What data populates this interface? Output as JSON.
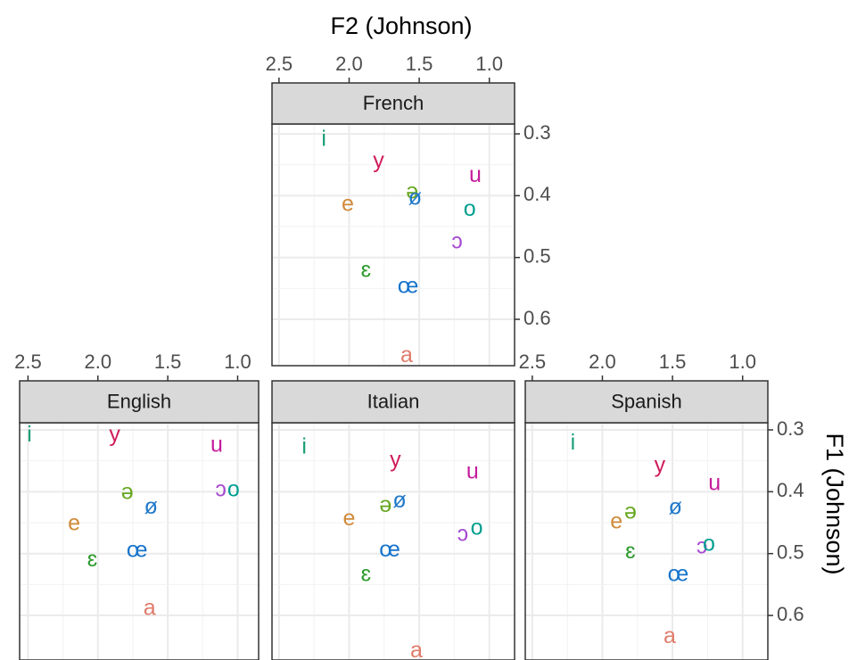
{
  "axis_labels": {
    "x": "F2 (Johnson)",
    "y": "F1 (Johnson)"
  },
  "chart_data": [
    {
      "type": "scatter",
      "facet": "French",
      "x_axis": "top",
      "y_axis": "right",
      "grid": true,
      "xlim": [
        2.55,
        0.82
      ],
      "ylim": [
        0.675,
        0.284
      ],
      "xticks": [
        2.5,
        {
          "value": 2,
          "label": "2.0"
        },
        1.5,
        {
          "value": 1,
          "label": "1.0"
        }
      ],
      "yticks": [
        0.3,
        0.4,
        0.5,
        0.6
      ],
      "labels": [
        "i",
        "y",
        "u",
        "ə",
        "ø",
        "e",
        "o",
        "ɔ",
        "ɛ",
        "œ",
        "a"
      ],
      "x": [
        2.18,
        1.79,
        1.1,
        1.55,
        1.53,
        2.01,
        1.14,
        1.23,
        1.88,
        1.58,
        1.59
      ],
      "values": [
        0.31,
        0.345,
        0.368,
        0.395,
        0.405,
        0.415,
        0.423,
        0.476,
        0.522,
        0.548,
        0.66
      ],
      "colors": [
        "#1a9e77",
        "#d01c5b",
        "#c51b9b",
        "#66a61e",
        "#1f78c8",
        "#d08a3a",
        "#009e8f",
        "#a64bd0",
        "#2a9a2a",
        "#1673cc",
        "#e07b6a"
      ]
    },
    {
      "type": "scatter",
      "facet": "English",
      "x_axis": "top",
      "y_axis": "none",
      "grid": true,
      "xlim": [
        2.56,
        0.85
      ],
      "ylim": [
        0.672,
        0.2885
      ],
      "xticks": [
        2.5,
        {
          "value": 2,
          "label": "2.0"
        },
        1.5,
        {
          "value": 1,
          "label": "1.0"
        }
      ],
      "yticks": [
        0.3,
        0.4,
        0.5,
        0.6
      ],
      "labels": [
        "i",
        "y",
        "u",
        "ə",
        "ɔ",
        "o",
        "ø",
        "e",
        "œ",
        "ɛ",
        "a"
      ],
      "x": [
        2.49,
        1.88,
        1.15,
        1.79,
        1.12,
        1.03,
        1.62,
        2.17,
        1.72,
        2.04,
        1.63
      ],
      "values": [
        0.309,
        0.309,
        0.326,
        0.402,
        0.398,
        0.398,
        0.426,
        0.453,
        0.496,
        0.511,
        0.59
      ],
      "colors": [
        "#1a9e77",
        "#d01c5b",
        "#c51b9b",
        "#66a61e",
        "#a64bd0",
        "#009e8f",
        "#1f78c8",
        "#d08a3a",
        "#1673cc",
        "#2a9a2a",
        "#e07b6a"
      ]
    },
    {
      "type": "scatter",
      "facet": "Italian",
      "x_axis": "none",
      "y_axis": "none",
      "grid": true,
      "xlim": [
        2.55,
        0.82
      ],
      "ylim": [
        0.672,
        0.2885
      ],
      "xticks": [
        2.5,
        {
          "value": 2,
          "label": "2.0"
        },
        1.5,
        {
          "value": 1,
          "label": "1.0"
        }
      ],
      "yticks": [
        0.3,
        0.4,
        0.5,
        0.6
      ],
      "labels": [
        "i",
        "y",
        "u",
        "ə",
        "ø",
        "e",
        "o",
        "ɔ",
        "œ",
        "ɛ",
        "a"
      ],
      "x": [
        2.32,
        1.67,
        1.12,
        1.74,
        1.64,
        2.0,
        1.09,
        1.19,
        1.71,
        1.88,
        1.52
      ],
      "values": [
        0.329,
        0.35,
        0.369,
        0.423,
        0.416,
        0.445,
        0.46,
        0.47,
        0.495,
        0.535,
        0.658
      ],
      "colors": [
        "#1a9e77",
        "#d01c5b",
        "#c51b9b",
        "#66a61e",
        "#1f78c8",
        "#d08a3a",
        "#009e8f",
        "#a64bd0",
        "#1673cc",
        "#2a9a2a",
        "#e07b6a"
      ]
    },
    {
      "type": "scatter",
      "facet": "Spanish",
      "x_axis": "top",
      "y_axis": "right",
      "grid": true,
      "xlim": [
        2.55,
        0.82
      ],
      "ylim": [
        0.672,
        0.2885
      ],
      "xticks": [
        2.5,
        {
          "value": 2,
          "label": "2.0"
        },
        1.5,
        {
          "value": 1,
          "label": "1.0"
        }
      ],
      "yticks": [
        0.3,
        0.4,
        0.5,
        0.6
      ],
      "labels": [
        "i",
        "y",
        "u",
        "e",
        "ə",
        "ø",
        "ɛ",
        "ɔ",
        "o",
        "œ",
        "a"
      ],
      "x": [
        2.21,
        1.59,
        1.2,
        1.9,
        1.8,
        1.48,
        1.8,
        1.29,
        1.24,
        1.46,
        1.52
      ],
      "values": [
        0.322,
        0.359,
        0.388,
        0.45,
        0.434,
        0.427,
        0.498,
        0.49,
        0.486,
        0.535,
        0.635
      ],
      "colors": [
        "#1a9e77",
        "#d01c5b",
        "#c51b9b",
        "#d08a3a",
        "#66a61e",
        "#1f78c8",
        "#2a9a2a",
        "#a64bd0",
        "#009e8f",
        "#1673cc",
        "#e07b6a"
      ]
    }
  ]
}
